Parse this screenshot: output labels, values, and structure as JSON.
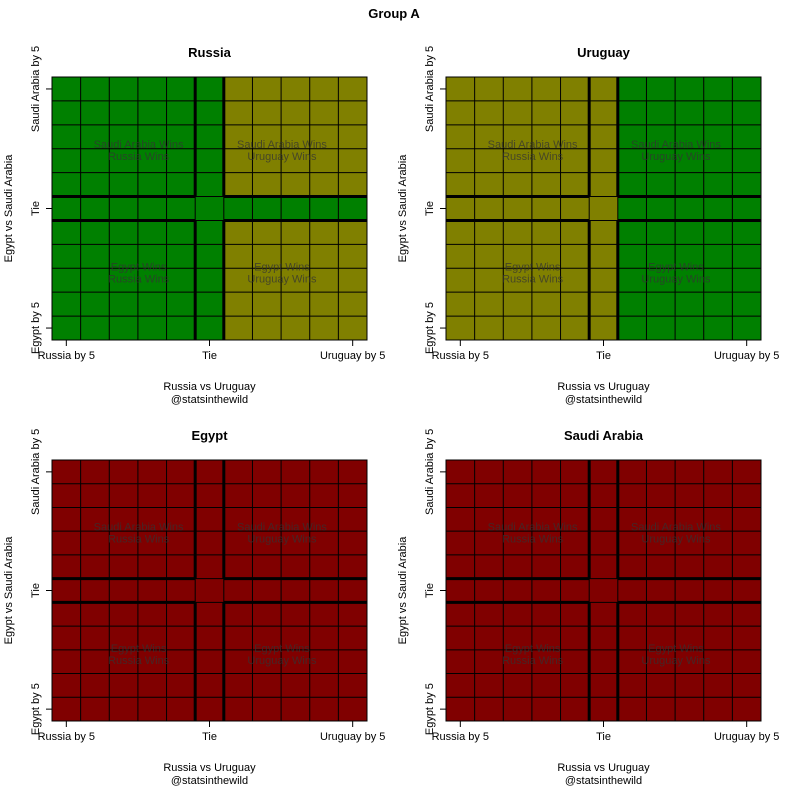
{
  "suptitle": "Group A",
  "credit": "@statsinthewild",
  "colors": {
    "win": "#008000",
    "draw": "#808000",
    "lose": "#800000",
    "grid": "#000000",
    "label": "#333333"
  },
  "chart_data": [
    {
      "type": "heatmap",
      "title": "Russia",
      "xlabel": "Russia vs Uruguay",
      "ylabel": "Egypt vs Saudi Arabia",
      "x_ticks": [
        "Russia by 5",
        "Tie",
        "Uruguay by 5"
      ],
      "y_ticks": [
        "Saudi Arabia by 5",
        "Tie",
        "Egypt by 5"
      ],
      "x_range": [
        -5,
        5
      ],
      "y_range": [
        -5,
        5
      ],
      "quadrant_labels": {
        "top_left": [
          "Saudi Arabia Wins",
          "Russia Wins"
        ],
        "top_right": [
          "Saudi Arabia Wins",
          "Uruguay Wins"
        ],
        "bottom_left": [
          "Egypt Wins",
          "Russia Wins"
        ],
        "bottom_right": [
          "Egypt Wins",
          "Uruguay Wins"
        ]
      },
      "cells": [
        [
          "win",
          "win",
          "win",
          "win",
          "win",
          "win",
          "draw",
          "draw",
          "draw",
          "draw",
          "draw"
        ],
        [
          "win",
          "win",
          "win",
          "win",
          "win",
          "win",
          "draw",
          "draw",
          "draw",
          "draw",
          "draw"
        ],
        [
          "win",
          "win",
          "win",
          "win",
          "win",
          "win",
          "draw",
          "draw",
          "draw",
          "draw",
          "draw"
        ],
        [
          "win",
          "win",
          "win",
          "win",
          "win",
          "win",
          "draw",
          "draw",
          "draw",
          "draw",
          "draw"
        ],
        [
          "win",
          "win",
          "win",
          "win",
          "win",
          "win",
          "draw",
          "draw",
          "draw",
          "draw",
          "draw"
        ],
        [
          "win",
          "win",
          "win",
          "win",
          "win",
          "win",
          "win",
          "win",
          "win",
          "win",
          "win"
        ],
        [
          "win",
          "win",
          "win",
          "win",
          "win",
          "win",
          "draw",
          "draw",
          "draw",
          "draw",
          "draw"
        ],
        [
          "win",
          "win",
          "win",
          "win",
          "win",
          "win",
          "draw",
          "draw",
          "draw",
          "draw",
          "draw"
        ],
        [
          "win",
          "win",
          "win",
          "win",
          "win",
          "win",
          "draw",
          "draw",
          "draw",
          "draw",
          "draw"
        ],
        [
          "win",
          "win",
          "win",
          "win",
          "win",
          "win",
          "draw",
          "draw",
          "draw",
          "draw",
          "draw"
        ],
        [
          "win",
          "win",
          "win",
          "win",
          "win",
          "win",
          "draw",
          "draw",
          "draw",
          "draw",
          "draw"
        ]
      ]
    },
    {
      "type": "heatmap",
      "title": "Uruguay",
      "xlabel": "Russia vs Uruguay",
      "ylabel": "Egypt vs Saudi Arabia",
      "x_ticks": [
        "Russia by 5",
        "Tie",
        "Uruguay by 5"
      ],
      "y_ticks": [
        "Saudi Arabia by 5",
        "Tie",
        "Egypt by 5"
      ],
      "x_range": [
        -5,
        5
      ],
      "y_range": [
        -5,
        5
      ],
      "quadrant_labels": {
        "top_left": [
          "Saudi Arabia Wins",
          "Russia Wins"
        ],
        "top_right": [
          "Saudi Arabia Wins",
          "Uruguay Wins"
        ],
        "bottom_left": [
          "Egypt Wins",
          "Russia Wins"
        ],
        "bottom_right": [
          "Egypt Wins",
          "Uruguay Wins"
        ]
      },
      "cells": [
        [
          "draw",
          "draw",
          "draw",
          "draw",
          "draw",
          "draw",
          "win",
          "win",
          "win",
          "win",
          "win"
        ],
        [
          "draw",
          "draw",
          "draw",
          "draw",
          "draw",
          "draw",
          "win",
          "win",
          "win",
          "win",
          "win"
        ],
        [
          "draw",
          "draw",
          "draw",
          "draw",
          "draw",
          "draw",
          "win",
          "win",
          "win",
          "win",
          "win"
        ],
        [
          "draw",
          "draw",
          "draw",
          "draw",
          "draw",
          "draw",
          "win",
          "win",
          "win",
          "win",
          "win"
        ],
        [
          "draw",
          "draw",
          "draw",
          "draw",
          "draw",
          "draw",
          "win",
          "win",
          "win",
          "win",
          "win"
        ],
        [
          "draw",
          "draw",
          "draw",
          "draw",
          "draw",
          "draw",
          "win",
          "win",
          "win",
          "win",
          "win"
        ],
        [
          "draw",
          "draw",
          "draw",
          "draw",
          "draw",
          "draw",
          "win",
          "win",
          "win",
          "win",
          "win"
        ],
        [
          "draw",
          "draw",
          "draw",
          "draw",
          "draw",
          "draw",
          "win",
          "win",
          "win",
          "win",
          "win"
        ],
        [
          "draw",
          "draw",
          "draw",
          "draw",
          "draw",
          "draw",
          "win",
          "win",
          "win",
          "win",
          "win"
        ],
        [
          "draw",
          "draw",
          "draw",
          "draw",
          "draw",
          "draw",
          "win",
          "win",
          "win",
          "win",
          "win"
        ],
        [
          "draw",
          "draw",
          "draw",
          "draw",
          "draw",
          "draw",
          "win",
          "win",
          "win",
          "win",
          "win"
        ]
      ]
    },
    {
      "type": "heatmap",
      "title": "Egypt",
      "xlabel": "Russia vs Uruguay",
      "ylabel": "Egypt vs Saudi Arabia",
      "x_ticks": [
        "Russia by 5",
        "Tie",
        "Uruguay by 5"
      ],
      "y_ticks": [
        "Saudi Arabia by 5",
        "Tie",
        "Egypt by 5"
      ],
      "x_range": [
        -5,
        5
      ],
      "y_range": [
        -5,
        5
      ],
      "quadrant_labels": {
        "top_left": [
          "Saudi Arabia Wins",
          "Russia Wins"
        ],
        "top_right": [
          "Saudi Arabia Wins",
          "Uruguay Wins"
        ],
        "bottom_left": [
          "Egypt Wins",
          "Russia Wins"
        ],
        "bottom_right": [
          "Egypt Wins",
          "Uruguay Wins"
        ]
      },
      "cells": [
        [
          "lose",
          "lose",
          "lose",
          "lose",
          "lose",
          "lose",
          "lose",
          "lose",
          "lose",
          "lose",
          "lose"
        ],
        [
          "lose",
          "lose",
          "lose",
          "lose",
          "lose",
          "lose",
          "lose",
          "lose",
          "lose",
          "lose",
          "lose"
        ],
        [
          "lose",
          "lose",
          "lose",
          "lose",
          "lose",
          "lose",
          "lose",
          "lose",
          "lose",
          "lose",
          "lose"
        ],
        [
          "lose",
          "lose",
          "lose",
          "lose",
          "lose",
          "lose",
          "lose",
          "lose",
          "lose",
          "lose",
          "lose"
        ],
        [
          "lose",
          "lose",
          "lose",
          "lose",
          "lose",
          "lose",
          "lose",
          "lose",
          "lose",
          "lose",
          "lose"
        ],
        [
          "lose",
          "lose",
          "lose",
          "lose",
          "lose",
          "lose",
          "lose",
          "lose",
          "lose",
          "lose",
          "lose"
        ],
        [
          "lose",
          "lose",
          "lose",
          "lose",
          "lose",
          "lose",
          "lose",
          "lose",
          "lose",
          "lose",
          "lose"
        ],
        [
          "lose",
          "lose",
          "lose",
          "lose",
          "lose",
          "lose",
          "lose",
          "lose",
          "lose",
          "lose",
          "lose"
        ],
        [
          "lose",
          "lose",
          "lose",
          "lose",
          "lose",
          "lose",
          "lose",
          "lose",
          "lose",
          "lose",
          "lose"
        ],
        [
          "lose",
          "lose",
          "lose",
          "lose",
          "lose",
          "lose",
          "lose",
          "lose",
          "lose",
          "lose",
          "lose"
        ],
        [
          "lose",
          "lose",
          "lose",
          "lose",
          "lose",
          "lose",
          "lose",
          "lose",
          "lose",
          "lose",
          "lose"
        ]
      ]
    },
    {
      "type": "heatmap",
      "title": "Saudi Arabia",
      "xlabel": "Russia vs Uruguay",
      "ylabel": "Egypt vs Saudi Arabia",
      "x_ticks": [
        "Russia by 5",
        "Tie",
        "Uruguay by 5"
      ],
      "y_ticks": [
        "Saudi Arabia by 5",
        "Tie",
        "Egypt by 5"
      ],
      "x_range": [
        -5,
        5
      ],
      "y_range": [
        -5,
        5
      ],
      "quadrant_labels": {
        "top_left": [
          "Saudi Arabia Wins",
          "Russia Wins"
        ],
        "top_right": [
          "Saudi Arabia Wins",
          "Uruguay Wins"
        ],
        "bottom_left": [
          "Egypt Wins",
          "Russia Wins"
        ],
        "bottom_right": [
          "Egypt Wins",
          "Uruguay Wins"
        ]
      },
      "cells": [
        [
          "lose",
          "lose",
          "lose",
          "lose",
          "lose",
          "lose",
          "lose",
          "lose",
          "lose",
          "lose",
          "lose"
        ],
        [
          "lose",
          "lose",
          "lose",
          "lose",
          "lose",
          "lose",
          "lose",
          "lose",
          "lose",
          "lose",
          "lose"
        ],
        [
          "lose",
          "lose",
          "lose",
          "lose",
          "lose",
          "lose",
          "lose",
          "lose",
          "lose",
          "lose",
          "lose"
        ],
        [
          "lose",
          "lose",
          "lose",
          "lose",
          "lose",
          "lose",
          "lose",
          "lose",
          "lose",
          "lose",
          "lose"
        ],
        [
          "lose",
          "lose",
          "lose",
          "lose",
          "lose",
          "lose",
          "lose",
          "lose",
          "lose",
          "lose",
          "lose"
        ],
        [
          "lose",
          "lose",
          "lose",
          "lose",
          "lose",
          "lose",
          "lose",
          "lose",
          "lose",
          "lose",
          "lose"
        ],
        [
          "lose",
          "lose",
          "lose",
          "lose",
          "lose",
          "lose",
          "lose",
          "lose",
          "lose",
          "lose",
          "lose"
        ],
        [
          "lose",
          "lose",
          "lose",
          "lose",
          "lose",
          "lose",
          "lose",
          "lose",
          "lose",
          "lose",
          "lose"
        ],
        [
          "lose",
          "lose",
          "lose",
          "lose",
          "lose",
          "lose",
          "lose",
          "lose",
          "lose",
          "lose",
          "lose"
        ],
        [
          "lose",
          "lose",
          "lose",
          "lose",
          "lose",
          "lose",
          "lose",
          "lose",
          "lose",
          "lose",
          "lose"
        ],
        [
          "lose",
          "lose",
          "lose",
          "lose",
          "lose",
          "lose",
          "lose",
          "lose",
          "lose",
          "lose",
          "lose"
        ]
      ]
    }
  ]
}
